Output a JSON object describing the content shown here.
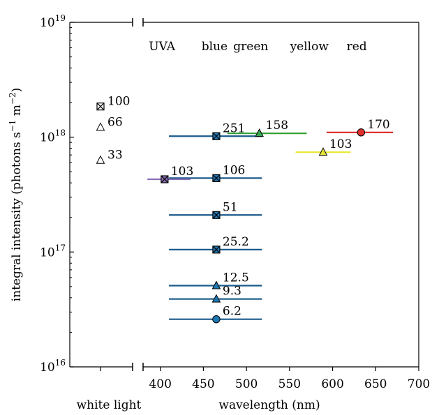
{
  "chart_data": {
    "type": "scatter",
    "ylabel_main": "integral intensity (photons s",
    "ylabel_sup1": "−1",
    "ylabel_mid": " m",
    "ylabel_sup2": "−2",
    "ylabel_end": ")",
    "xlabel": "wavelength (nm)",
    "white_label": "white light",
    "ylim": [
      1e+16,
      1e+19
    ],
    "xlim": [
      380,
      700
    ],
    "y_scale": "log",
    "y_ticks": [
      {
        "base": "10",
        "exp": "16",
        "value": 1e+16
      },
      {
        "base": "10",
        "exp": "17",
        "value": 1e+17
      },
      {
        "base": "10",
        "exp": "18",
        "value": 1e+18
      },
      {
        "base": "10",
        "exp": "19",
        "value": 1e+19
      }
    ],
    "x_ticks": [
      "400",
      "450",
      "500",
      "550",
      "600",
      "650",
      "700"
    ],
    "bands": [
      {
        "label": "UVA",
        "x": 402
      },
      {
        "label": "blue",
        "x": 463
      },
      {
        "label": "green",
        "x": 505
      },
      {
        "label": "yellow",
        "x": 573
      },
      {
        "label": "red",
        "x": 628
      }
    ],
    "white_points": [
      {
        "label": "100",
        "y": 1.85e+18,
        "marker": "boxx"
      },
      {
        "label": "66",
        "y": 1.22e+18,
        "marker": "triangle-open"
      },
      {
        "label": "33",
        "y": 6.3e+17,
        "marker": "triangle-open"
      }
    ],
    "spectral_points": [
      {
        "label": "6.2",
        "x": 465,
        "y": 2.6e+16,
        "x0": 410,
        "x1": 518,
        "marker": "circle",
        "color": "#1f77b4",
        "line": "#1b5a8a"
      },
      {
        "label": "9.3",
        "x": 465,
        "y": 3.9e+16,
        "x0": 410,
        "x1": 518,
        "marker": "triangle",
        "color": "#1f77b4",
        "line": "#1b5a8a"
      },
      {
        "label": "12.5",
        "x": 465,
        "y": 5.1e+16,
        "x0": 410,
        "x1": 518,
        "marker": "triangle",
        "color": "#1f77b4",
        "line": "#1b5a8a"
      },
      {
        "label": "25.2",
        "x": 465,
        "y": 1.05e+17,
        "x0": 410,
        "x1": 518,
        "marker": "boxx",
        "color": "#1f77b4",
        "line": "#1b5a8a"
      },
      {
        "label": "51",
        "x": 465,
        "y": 2.1e+17,
        "x0": 410,
        "x1": 518,
        "marker": "boxx",
        "color": "#1f77b4",
        "line": "#1b5a8a"
      },
      {
        "label": "106",
        "x": 465,
        "y": 4.4e+17,
        "x0": 410,
        "x1": 518,
        "marker": "boxx",
        "color": "#1f77b4",
        "line": "#1b5a8a"
      },
      {
        "label": "251",
        "x": 465,
        "y": 1.02e+18,
        "x0": 410,
        "x1": 518,
        "marker": "boxx",
        "color": "#1f77b4",
        "line": "#1b5a8a"
      },
      {
        "label": "103",
        "x": 405,
        "y": 4.3e+17,
        "x0": 385,
        "x1": 435,
        "marker": "boxx",
        "color": "#8a6fb5",
        "line": "#8a6fb5"
      },
      {
        "label": "158",
        "x": 515,
        "y": 1.08e+18,
        "x0": 478,
        "x1": 570,
        "marker": "triangle",
        "color": "#3aa655",
        "line": "#2ca02c"
      },
      {
        "label": "103",
        "x": 589,
        "y": 7.4e+17,
        "x0": 557,
        "x1": 621,
        "marker": "triangle",
        "color": "#e3e33a",
        "line": "#e8e830"
      },
      {
        "label": "170",
        "x": 633,
        "y": 1.1e+18,
        "x0": 593,
        "x1": 670,
        "marker": "circle",
        "color": "#e03030",
        "line": "#e03030"
      }
    ]
  }
}
